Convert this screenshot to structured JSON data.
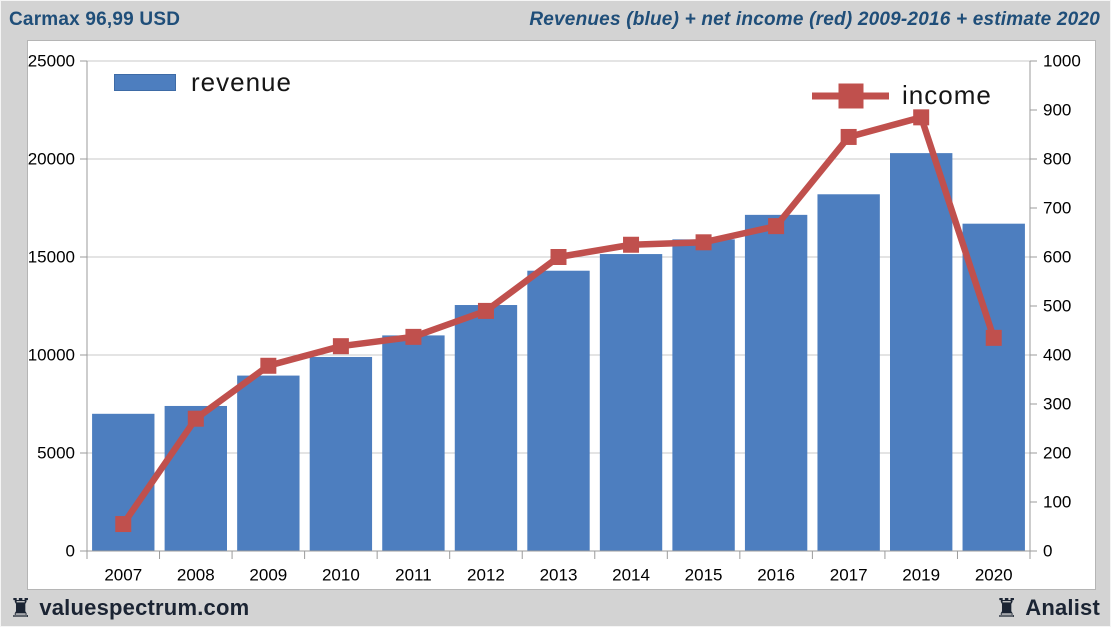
{
  "header": {
    "title_left": "Carmax 96,99 USD",
    "title_right": "Revenues (blue) + net income (red) 2009-2016 + estimate 2020"
  },
  "legend": {
    "revenue_label": "revenue",
    "income_label": "income"
  },
  "footer": {
    "brand_icon": "♜",
    "brand_label": "valuespectrum.com",
    "right_icon": "♜",
    "right_label": "Analist"
  },
  "colors": {
    "background": "#d3d3d3",
    "plot_bg": "#ffffff",
    "header_text": "#1f4e79",
    "footer_text": "#1b2433",
    "bar": "#4d7ebf",
    "line": "#c0504d",
    "grid": "#c8c8c8",
    "axis": "#9b9b9b",
    "tick_text": "#000000"
  },
  "chart_data": {
    "type": "bar+line",
    "title": "Revenues (blue) + net income (red) 2009-2016 + estimate 2020",
    "categories": [
      "2007",
      "2008",
      "2009",
      "2010",
      "2011",
      "2012",
      "2013",
      "2014",
      "2015",
      "2016",
      "2017",
      "2019",
      "2020"
    ],
    "series": [
      {
        "name": "revenue",
        "type": "bar",
        "axis": "left",
        "values": [
          7000,
          7400,
          8950,
          9900,
          11000,
          12550,
          14300,
          15150,
          15900,
          17150,
          18200,
          20300,
          16700
        ]
      },
      {
        "name": "income",
        "type": "line",
        "axis": "right",
        "values": [
          55,
          270,
          378,
          418,
          437,
          490,
          600,
          625,
          630,
          663,
          845,
          885,
          435
        ]
      }
    ],
    "left_axis": {
      "min": 0,
      "max": 25000,
      "ticks": [
        0,
        5000,
        10000,
        15000,
        20000,
        25000
      ]
    },
    "right_axis": {
      "min": 0,
      "max": 1000,
      "ticks": [
        0,
        100,
        200,
        300,
        400,
        500,
        600,
        700,
        800,
        900,
        1000
      ]
    },
    "grid": true,
    "legend_position": "top-inside"
  }
}
